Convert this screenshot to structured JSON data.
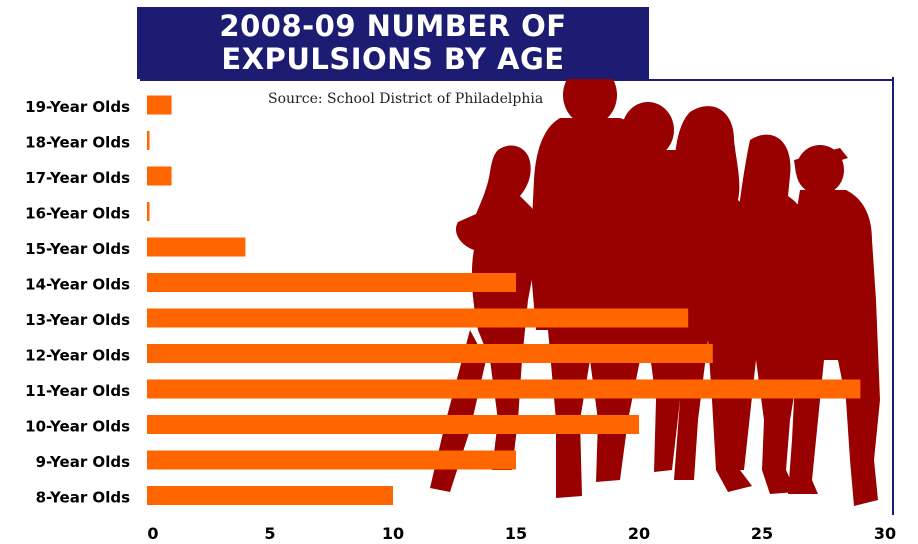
{
  "title_lines": [
    "2008-09 NUMBER OF",
    "EXPULSIONS BY AGE"
  ],
  "source": "Source: School District of Philadelphia",
  "colors": {
    "bar": "#ff6600",
    "title_bg": "#1c1c73",
    "silhouette": "#990000",
    "frame": "#1c1c73"
  },
  "chart_data": {
    "type": "bar",
    "orientation": "horizontal",
    "title": "2008-09 NUMBER OF EXPULSIONS BY AGE",
    "categories": [
      "19-Year Olds",
      "18-Year Olds",
      "17-Year Olds",
      "16-Year Olds",
      "15-Year Olds",
      "14-Year Olds",
      "13-Year Olds",
      "12-Year Olds",
      "11-Year Olds",
      "10-Year Olds",
      "9-Year Olds",
      "8-Year Olds"
    ],
    "values": [
      1,
      0,
      1,
      0,
      4,
      15,
      22,
      23,
      29,
      20,
      15,
      10
    ],
    "xlim": [
      0,
      30
    ],
    "xticks": [
      0,
      5,
      10,
      15,
      20,
      25,
      30
    ],
    "xlabel": "",
    "ylabel": "",
    "grid": false,
    "legend": "none"
  }
}
